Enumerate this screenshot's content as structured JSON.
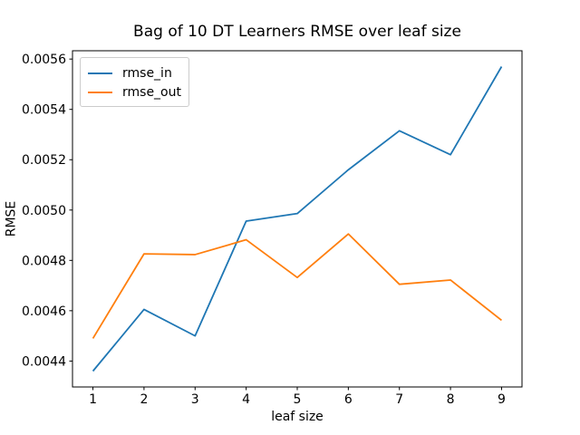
{
  "chart_data": {
    "type": "line",
    "title": "Bag of 10 DT Learners RMSE over leaf size",
    "xlabel": "leaf size",
    "ylabel": "RMSE",
    "x": [
      1,
      2,
      3,
      4,
      5,
      6,
      7,
      8,
      9
    ],
    "series": [
      {
        "name": "rmse_in",
        "color": "#1f77b4",
        "values": [
          0.00436,
          0.004605,
          0.0045,
          0.004956,
          0.004986,
          0.00516,
          0.005315,
          0.00522,
          0.00557
        ]
      },
      {
        "name": "rmse_out",
        "color": "#ff7f0e",
        "values": [
          0.00449,
          0.004826,
          0.004823,
          0.004882,
          0.004732,
          0.004905,
          0.004705,
          0.004722,
          0.004562
        ]
      }
    ],
    "x_ticks": [
      "1",
      "2",
      "3",
      "4",
      "5",
      "6",
      "7",
      "8",
      "9"
    ],
    "y_ticks": [
      "0.0044",
      "0.0046",
      "0.0048",
      "0.0050",
      "0.0052",
      "0.0054",
      "0.0056"
    ],
    "xlim": [
      0.6,
      9.4
    ],
    "ylim": [
      0.004297,
      0.005633
    ],
    "grid": false,
    "legend": {
      "position": "upper-left",
      "entries": [
        "rmse_in",
        "rmse_out"
      ]
    }
  }
}
